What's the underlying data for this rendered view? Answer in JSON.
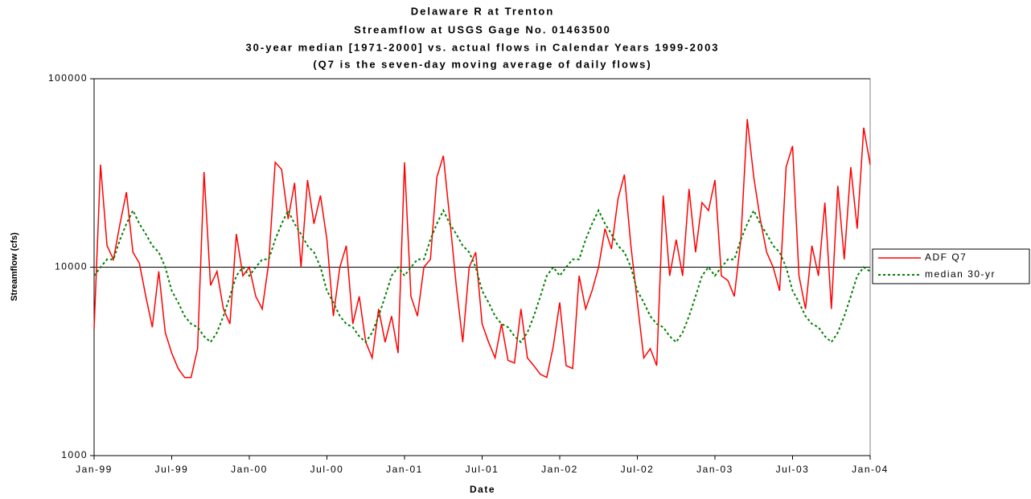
{
  "chart_data": {
    "type": "line",
    "title": [
      "Delaware R at Trenton",
      "Streamflow at USGS Gage No. 01463500",
      "30-year median [1971-2000] vs. actual flows in Calendar Years 1999-2003",
      "(Q7 is the seven-day moving average of daily flows)"
    ],
    "xlabel": "Date",
    "ylabel": "Streamflow (cfs)",
    "x": [
      1999,
      1999.0417,
      1999.0833,
      1999.125,
      1999.1667,
      1999.2083,
      1999.25,
      1999.2917,
      1999.3333,
      1999.375,
      1999.4167,
      1999.4583,
      1999.5,
      1999.5417,
      1999.5833,
      1999.625,
      1999.6667,
      1999.7083,
      1999.75,
      1999.7917,
      1999.8333,
      1999.875,
      1999.9167,
      1999.9583,
      2000,
      2000.0417,
      2000.0833,
      2000.125,
      2000.1667,
      2000.2083,
      2000.25,
      2000.2917,
      2000.3333,
      2000.375,
      2000.4167,
      2000.4583,
      2000.5,
      2000.5417,
      2000.5833,
      2000.625,
      2000.6667,
      2000.7083,
      2000.75,
      2000.7917,
      2000.8333,
      2000.875,
      2000.9167,
      2000.9583,
      2001,
      2001.0417,
      2001.0833,
      2001.125,
      2001.1667,
      2001.2083,
      2001.25,
      2001.2917,
      2001.3333,
      2001.375,
      2001.4167,
      2001.4583,
      2001.5,
      2001.5417,
      2001.5833,
      2001.625,
      2001.6667,
      2001.7083,
      2001.75,
      2001.7917,
      2001.8333,
      2001.875,
      2001.9167,
      2001.9583,
      2002,
      2002.0417,
      2002.0833,
      2002.125,
      2002.1667,
      2002.2083,
      2002.25,
      2002.2917,
      2002.3333,
      2002.375,
      2002.4167,
      2002.4583,
      2002.5,
      2002.5417,
      2002.5833,
      2002.625,
      2002.6667,
      2002.7083,
      2002.75,
      2002.7917,
      2002.8333,
      2002.875,
      2002.9167,
      2002.9583,
      2003,
      2003.0417,
      2003.0833,
      2003.125,
      2003.1667,
      2003.2083,
      2003.25,
      2003.2917,
      2003.3333,
      2003.375,
      2003.4167,
      2003.4583,
      2003.5,
      2003.5417,
      2003.5833,
      2003.625,
      2003.6667,
      2003.7083,
      2003.75,
      2003.7917,
      2003.8333,
      2003.875,
      2003.9167,
      2003.9583,
      2004
    ],
    "series": [
      {
        "name": "ADF Q7",
        "color": "#ff0000",
        "dashed": false,
        "values": [
          4700,
          35000,
          13000,
          11000,
          17000,
          25000,
          12000,
          10500,
          7000,
          4800,
          9500,
          4500,
          3500,
          2900,
          2600,
          2600,
          3700,
          32000,
          8000,
          9500,
          6000,
          5000,
          15000,
          9000,
          10000,
          7000,
          6000,
          10500,
          36000,
          33000,
          18000,
          28000,
          10000,
          29000,
          17000,
          24000,
          14000,
          5500,
          10000,
          13000,
          5000,
          7000,
          4000,
          3300,
          6000,
          4000,
          5500,
          3500,
          36000,
          7000,
          5500,
          10000,
          11000,
          30000,
          39000,
          18000,
          8000,
          4000,
          10000,
          12000,
          5000,
          4000,
          3300,
          5000,
          3200,
          3100,
          6000,
          3300,
          3000,
          2700,
          2600,
          3800,
          6500,
          3000,
          2900,
          9000,
          6000,
          7500,
          10000,
          16000,
          12500,
          23000,
          31000,
          13000,
          6500,
          3300,
          3700,
          3000,
          24000,
          9000,
          14000,
          9000,
          26000,
          12000,
          22000,
          20000,
          29000,
          9000,
          8500,
          7000,
          14000,
          61000,
          30000,
          18000,
          12000,
          10000,
          7500,
          34000,
          44000,
          9000,
          6000,
          13000,
          9000,
          22000,
          6000,
          27000,
          11000,
          34000,
          16000,
          55000,
          35000
        ]
      },
      {
        "name": "median 30-yr",
        "color": "#008000",
        "dashed": true,
        "values": [
          9000,
          10000,
          11000,
          11000,
          14000,
          17000,
          20000,
          17000,
          15000,
          13000,
          12000,
          10000,
          7500,
          6500,
          5500,
          5000,
          4800,
          4300,
          4000,
          4500,
          5500,
          7000,
          9000,
          10000,
          9000,
          10000,
          11000,
          11000,
          14000,
          17000,
          20000,
          17000,
          15000,
          13000,
          12000,
          10000,
          7500,
          6500,
          5500,
          5000,
          4800,
          4300,
          4000,
          4500,
          5500,
          7000,
          9000,
          10000,
          9000,
          10000,
          11000,
          11000,
          14000,
          17000,
          20000,
          17000,
          15000,
          13000,
          12000,
          10000,
          7500,
          6500,
          5500,
          5000,
          4800,
          4300,
          4000,
          4500,
          5500,
          7000,
          9000,
          10000,
          9000,
          10000,
          11000,
          11000,
          14000,
          17000,
          20000,
          17000,
          15000,
          13000,
          12000,
          10000,
          7500,
          6500,
          5500,
          5000,
          4800,
          4300,
          4000,
          4500,
          5500,
          7000,
          9000,
          10000,
          9000,
          10000,
          11000,
          11000,
          14000,
          17000,
          20000,
          17000,
          15000,
          13000,
          12000,
          10000,
          7500,
          6500,
          5500,
          5000,
          4800,
          4300,
          4000,
          4500,
          5500,
          7000,
          9000,
          10000,
          9500
        ]
      }
    ],
    "xlim": [
      1999,
      2004
    ],
    "xticks": [
      {
        "value": 1999,
        "label": "Jan-99"
      },
      {
        "value": 1999.5,
        "label": "Jul-99"
      },
      {
        "value": 2000,
        "label": "Jan-00"
      },
      {
        "value": 2000.5,
        "label": "Jul-00"
      },
      {
        "value": 2001,
        "label": "Jan-01"
      },
      {
        "value": 2001.5,
        "label": "Jul-01"
      },
      {
        "value": 2002,
        "label": "Jan-02"
      },
      {
        "value": 2002.5,
        "label": "Jul-02"
      },
      {
        "value": 2003,
        "label": "Jan-03"
      },
      {
        "value": 2003.5,
        "label": "Jul-03"
      },
      {
        "value": 2004,
        "label": "Jan-04"
      }
    ],
    "ylim": [
      1000,
      100000
    ],
    "yticks": [
      1000,
      10000,
      100000
    ],
    "ylog": true,
    "grid": true,
    "legend": "right"
  }
}
